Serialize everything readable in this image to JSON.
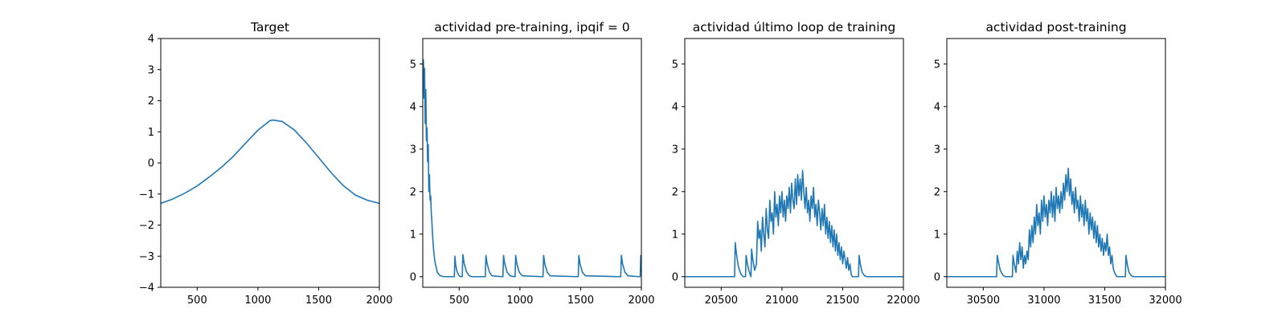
{
  "figure": {
    "background": "#ffffff",
    "line_color": "#1f77b4"
  },
  "chart_data": [
    {
      "type": "line",
      "title": "Target",
      "xlabel": "",
      "ylabel": "",
      "xlim": [
        200,
        2000
      ],
      "ylim": [
        -4,
        4
      ],
      "xticks": [
        500,
        1000,
        1500,
        2000
      ],
      "yticks": [
        -4,
        -3,
        -2,
        -1,
        0,
        1,
        2,
        3,
        4
      ],
      "series": [
        {
          "x": [
            200,
            300,
            400,
            500,
            600,
            700,
            800,
            900,
            1000,
            1100,
            1125,
            1200,
            1300,
            1400,
            1500,
            1600,
            1700,
            1800,
            1900,
            2000
          ],
          "values": [
            -1.3,
            -1.16,
            -0.97,
            -0.74,
            -0.45,
            -0.14,
            0.22,
            0.64,
            1.05,
            1.36,
            1.38,
            1.33,
            1.06,
            0.64,
            0.17,
            -0.3,
            -0.72,
            -1.03,
            -1.2,
            -1.3
          ]
        }
      ]
    },
    {
      "type": "line",
      "title": "actividad pre-training, ipqif = 0",
      "xlabel": "",
      "ylabel": "",
      "xlim": [
        200,
        2000
      ],
      "ylim": [
        -0.25,
        5.6
      ],
      "xticks": [
        500,
        1000,
        1500,
        2000
      ],
      "yticks": [
        0,
        1,
        2,
        3,
        4,
        5
      ],
      "series": [
        {
          "x": [
            200,
            205,
            210,
            215,
            220,
            225,
            230,
            235,
            240,
            245,
            250,
            255,
            260,
            265,
            270,
            275,
            280,
            290,
            300,
            320,
            340,
            370,
            400,
            430,
            460,
            465,
            470,
            480,
            495,
            510,
            525,
            530,
            540,
            560,
            580,
            600,
            700,
            715,
            720,
            730,
            750,
            770,
            850,
            860,
            865,
            875,
            895,
            920,
            950,
            960,
            965,
            975,
            995,
            1020,
            1180,
            1190,
            1195,
            1205,
            1225,
            1250,
            1470,
            1480,
            1485,
            1495,
            1515,
            1540,
            1820,
            1830,
            1835,
            1845,
            1865,
            1890,
            1980,
            1990,
            1995,
            2000
          ],
          "values": [
            4.9,
            5.1,
            4.2,
            4.9,
            3.6,
            4.4,
            3.2,
            3.5,
            2.7,
            3.1,
            2.0,
            2.4,
            1.8,
            1.9,
            1.5,
            1.3,
            1.0,
            0.6,
            0.35,
            0.1,
            0.03,
            0.0,
            0.0,
            0.0,
            0.0,
            0.48,
            0.3,
            0.14,
            0.04,
            0.0,
            0.0,
            0.52,
            0.32,
            0.12,
            0.03,
            0.0,
            0.0,
            0.0,
            0.5,
            0.3,
            0.1,
            0.02,
            0.0,
            0.0,
            0.5,
            0.3,
            0.1,
            0.02,
            0.0,
            0.0,
            0.5,
            0.3,
            0.1,
            0.02,
            0.0,
            0.0,
            0.5,
            0.3,
            0.1,
            0.02,
            0.0,
            0.0,
            0.5,
            0.3,
            0.1,
            0.02,
            0.0,
            0.0,
            0.5,
            0.3,
            0.1,
            0.02,
            0.0,
            0.0,
            0.5,
            0.35
          ]
        }
      ]
    },
    {
      "type": "line",
      "title": "actividad último loop de training",
      "xlabel": "",
      "ylabel": "",
      "xlim": [
        20200,
        22000
      ],
      "ylim": [
        -0.25,
        5.6
      ],
      "xticks": [
        20500,
        21000,
        21500,
        22000
      ],
      "yticks": [
        0,
        1,
        2,
        3,
        4,
        5
      ],
      "series": [
        {
          "x": [
            20200,
            20400,
            20610,
            20615,
            20625,
            20640,
            20660,
            20680,
            20700,
            20705,
            20715,
            20730,
            20745,
            20750,
            20760,
            20775,
            20790,
            20800,
            20810,
            20820,
            20830,
            20840,
            20850,
            20860,
            20870,
            20880,
            20890,
            20900,
            20910,
            20920,
            20930,
            20940,
            20950,
            20960,
            20970,
            20980,
            20990,
            21000,
            21010,
            21020,
            21030,
            21040,
            21050,
            21060,
            21070,
            21080,
            21090,
            21100,
            21110,
            21120,
            21130,
            21140,
            21150,
            21160,
            21170,
            21180,
            21190,
            21200,
            21210,
            21220,
            21230,
            21240,
            21250,
            21260,
            21270,
            21280,
            21290,
            21300,
            21310,
            21320,
            21330,
            21340,
            21350,
            21360,
            21370,
            21380,
            21390,
            21400,
            21410,
            21420,
            21430,
            21440,
            21450,
            21460,
            21470,
            21480,
            21490,
            21500,
            21510,
            21520,
            21530,
            21540,
            21550,
            21560,
            21570,
            21580,
            21600,
            21630,
            21635,
            21645,
            21660,
            21680,
            21700,
            21800,
            22000
          ],
          "values": [
            0.0,
            0.0,
            0.0,
            0.8,
            0.55,
            0.25,
            0.07,
            0.0,
            0.0,
            0.5,
            0.3,
            0.12,
            0.0,
            0.65,
            0.4,
            0.15,
            0.3,
            1.3,
            0.9,
            1.1,
            0.6,
            1.4,
            1.0,
            0.7,
            1.6,
            1.1,
            0.9,
            1.8,
            1.3,
            1.5,
            1.0,
            2.0,
            1.4,
            1.7,
            1.2,
            1.9,
            1.5,
            2.0,
            1.4,
            1.8,
            1.3,
            1.9,
            1.6,
            2.1,
            1.5,
            2.2,
            1.8,
            1.6,
            2.3,
            1.7,
            2.4,
            1.9,
            2.3,
            1.8,
            2.5,
            2.0,
            1.6,
            2.1,
            1.5,
            1.8,
            1.3,
            1.9,
            1.6,
            2.1,
            1.4,
            1.7,
            1.2,
            1.8,
            1.5,
            1.1,
            1.6,
            1.2,
            1.7,
            1.0,
            1.4,
            0.9,
            1.3,
            0.8,
            1.2,
            0.7,
            1.1,
            0.6,
            1.0,
            0.5,
            0.8,
            0.4,
            0.7,
            0.3,
            0.6,
            0.4,
            0.2,
            0.45,
            0.15,
            0.3,
            0.05,
            0.0,
            0.0,
            0.0,
            0.5,
            0.3,
            0.1,
            0.02,
            0.0,
            0.0,
            0.0
          ]
        }
      ]
    },
    {
      "type": "line",
      "title": "actividad post-training",
      "xlabel": "",
      "ylabel": "",
      "xlim": [
        30200,
        32000
      ],
      "ylim": [
        -0.25,
        5.6
      ],
      "xticks": [
        30500,
        31000,
        31500,
        32000
      ],
      "yticks": [
        0,
        1,
        2,
        3,
        4,
        5
      ],
      "series": [
        {
          "x": [
            30200,
            30400,
            30610,
            30615,
            30625,
            30640,
            30660,
            30680,
            30740,
            30745,
            30755,
            30770,
            30780,
            30790,
            30800,
            30810,
            30820,
            30830,
            30840,
            30850,
            30860,
            30870,
            30880,
            30890,
            30900,
            30910,
            30920,
            30930,
            30940,
            30950,
            30960,
            30970,
            30980,
            30990,
            31000,
            31010,
            31020,
            31030,
            31040,
            31050,
            31060,
            31070,
            31080,
            31090,
            31100,
            31110,
            31120,
            31130,
            31140,
            31150,
            31160,
            31170,
            31180,
            31190,
            31200,
            31210,
            31220,
            31230,
            31240,
            31250,
            31260,
            31270,
            31280,
            31290,
            31300,
            31310,
            31320,
            31330,
            31340,
            31350,
            31360,
            31370,
            31380,
            31390,
            31400,
            31410,
            31420,
            31430,
            31440,
            31450,
            31460,
            31470,
            31480,
            31490,
            31500,
            31510,
            31520,
            31530,
            31540,
            31550,
            31560,
            31570,
            31580,
            31600,
            31670,
            31675,
            31685,
            31700,
            31720,
            31740,
            31800,
            32000
          ],
          "values": [
            0.0,
            0.0,
            0.0,
            0.5,
            0.35,
            0.15,
            0.04,
            0.0,
            0.0,
            0.5,
            0.3,
            0.1,
            0.6,
            0.3,
            0.8,
            0.4,
            0.7,
            0.2,
            0.5,
            0.3,
            0.6,
            0.4,
            1.1,
            0.7,
            1.2,
            0.8,
            1.4,
            1.0,
            1.7,
            1.2,
            1.5,
            1.0,
            1.8,
            1.3,
            1.9,
            1.4,
            1.7,
            1.2,
            1.8,
            1.5,
            2.0,
            1.4,
            1.9,
            1.3,
            2.1,
            1.6,
            1.9,
            1.5,
            2.0,
            1.6,
            2.2,
            1.8,
            2.4,
            2.0,
            2.55,
            1.9,
            2.3,
            1.7,
            2.0,
            1.5,
            2.1,
            1.6,
            1.8,
            1.3,
            1.9,
            1.4,
            1.7,
            1.2,
            1.8,
            1.3,
            1.6,
            1.0,
            1.5,
            1.1,
            1.4,
            0.9,
            1.3,
            0.8,
            1.2,
            0.7,
            1.0,
            0.6,
            0.9,
            0.5,
            0.8,
            0.6,
            1.0,
            0.5,
            0.7,
            0.3,
            0.5,
            0.2,
            0.1,
            0.0,
            0.0,
            0.5,
            0.3,
            0.1,
            0.02,
            0.0,
            0.0,
            0.0
          ]
        }
      ]
    }
  ]
}
